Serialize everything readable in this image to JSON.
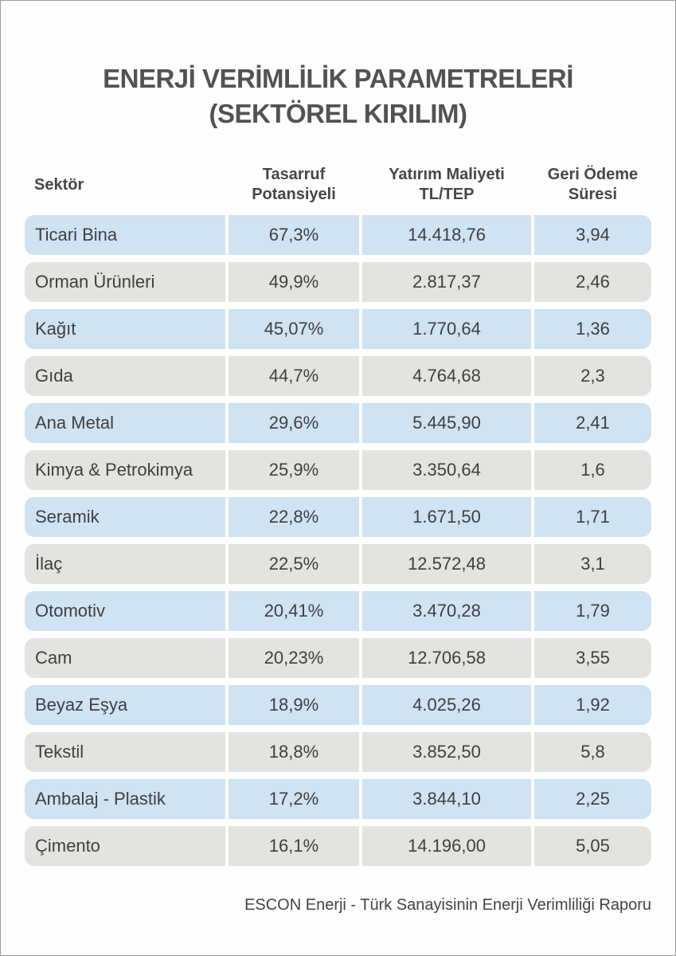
{
  "colors": {
    "row_blue": "#cfe3f2",
    "row_gray": "#e4e3e0",
    "title_text": "#515254",
    "body_text": "#3e3f41",
    "page_border": "#9c9c9c"
  },
  "header": {
    "title_line1": "ENERJİ VERİMLİLİK PARAMETRELERİ",
    "title_line2": "(SEKTÖREL KIRILIM)"
  },
  "table": {
    "columns": [
      {
        "label": "Sektör"
      },
      {
        "label": "Tasarruf\nPotansiyeli"
      },
      {
        "label": "Yatırım Maliyeti\nTL/TEP"
      },
      {
        "label": "Geri Ödeme\nSüresi"
      }
    ],
    "rows": [
      {
        "sector": "Ticari Bina",
        "saving": "67,3%",
        "cost": "14.418,76",
        "payback": "3,94"
      },
      {
        "sector": "Orman Ürünleri",
        "saving": "49,9%",
        "cost": "2.817,37",
        "payback": "2,46"
      },
      {
        "sector": "Kağıt",
        "saving": "45,07%",
        "cost": "1.770,64",
        "payback": "1,36"
      },
      {
        "sector": "Gıda",
        "saving": "44,7%",
        "cost": "4.764,68",
        "payback": "2,3"
      },
      {
        "sector": "Ana Metal",
        "saving": "29,6%",
        "cost": "5.445,90",
        "payback": "2,41"
      },
      {
        "sector": "Kimya & Petrokimya",
        "saving": "25,9%",
        "cost": "3.350,64",
        "payback": "1,6"
      },
      {
        "sector": "Seramik",
        "saving": "22,8%",
        "cost": "1.671,50",
        "payback": "1,71"
      },
      {
        "sector": "İlaç",
        "saving": "22,5%",
        "cost": "12.572,48",
        "payback": "3,1"
      },
      {
        "sector": "Otomotiv",
        "saving": "20,41%",
        "cost": "3.470,28",
        "payback": "1,79"
      },
      {
        "sector": "Cam",
        "saving": "20,23%",
        "cost": "12.706,58",
        "payback": "3,55"
      },
      {
        "sector": "Beyaz Eşya",
        "saving": "18,9%",
        "cost": "4.025,26",
        "payback": "1,92"
      },
      {
        "sector": "Tekstil",
        "saving": "18,8%",
        "cost": "3.852,50",
        "payback": "5,8"
      },
      {
        "sector": "Ambalaj - Plastik",
        "saving": "17,2%",
        "cost": "3.844,10",
        "payback": "2,25"
      },
      {
        "sector": "Çimento",
        "saving": "16,1%",
        "cost": "14.196,00",
        "payback": "5,05"
      }
    ]
  },
  "footer": {
    "text": "ESCON Enerji - Türk Sanayisinin Enerji Verimliliği Raporu"
  },
  "chart_data": {
    "type": "table",
    "title": "ENERJİ VERİMLİLİK PARAMETRELERİ (SEKTÖREL KIRILIM)",
    "columns": [
      "Sektör",
      "Tasarruf Potansiyeli",
      "Yatırım Maliyeti TL/TEP",
      "Geri Ödeme Süresi"
    ],
    "rows": [
      [
        "Ticari Bina",
        "67,3%",
        "14.418,76",
        "3,94"
      ],
      [
        "Orman Ürünleri",
        "49,9%",
        "2.817,37",
        "2,46"
      ],
      [
        "Kağıt",
        "45,07%",
        "1.770,64",
        "1,36"
      ],
      [
        "Gıda",
        "44,7%",
        "4.764,68",
        "2,3"
      ],
      [
        "Ana Metal",
        "29,6%",
        "5.445,90",
        "2,41"
      ],
      [
        "Kimya & Petrokimya",
        "25,9%",
        "3.350,64",
        "1,6"
      ],
      [
        "Seramik",
        "22,8%",
        "1.671,50",
        "1,71"
      ],
      [
        "İlaç",
        "22,5%",
        "12.572,48",
        "3,1"
      ],
      [
        "Otomotiv",
        "20,41%",
        "3.470,28",
        "1,79"
      ],
      [
        "Cam",
        "20,23%",
        "12.706,58",
        "3,55"
      ],
      [
        "Beyaz Eşya",
        "18,9%",
        "4.025,26",
        "1,92"
      ],
      [
        "Tekstil",
        "18,8%",
        "3.852,50",
        "5,8"
      ],
      [
        "Ambalaj - Plastik",
        "17,2%",
        "3.844,10",
        "2,25"
      ],
      [
        "Çimento",
        "16,1%",
        "14.196,00",
        "5,05"
      ]
    ],
    "saving_potential_percent": [
      67.3,
      49.9,
      45.07,
      44.7,
      29.6,
      25.9,
      22.8,
      22.5,
      20.41,
      20.23,
      18.9,
      18.8,
      17.2,
      16.1
    ],
    "investment_cost_tl_per_tep": [
      14418.76,
      2817.37,
      1770.64,
      4764.68,
      5445.9,
      3350.64,
      1671.5,
      12572.48,
      3470.28,
      12706.58,
      4025.26,
      3852.5,
      3844.1,
      14196.0
    ],
    "payback_years": [
      3.94,
      2.46,
      1.36,
      2.3,
      2.41,
      1.6,
      1.71,
      3.1,
      1.79,
      3.55,
      1.92,
      5.8,
      2.25,
      5.05
    ],
    "source": "ESCON Enerji - Türk Sanayisinin Enerji Verimliliği Raporu"
  }
}
